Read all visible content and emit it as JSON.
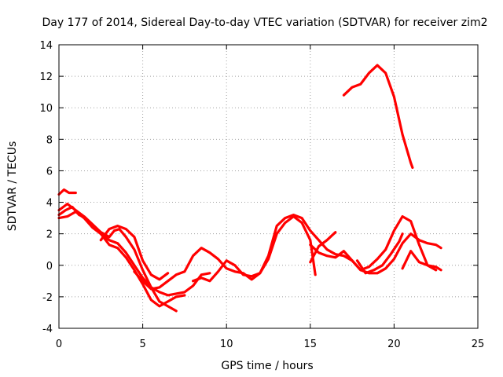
{
  "chart_data": {
    "type": "line",
    "title": "Day 177 of 2014, Sidereal Day-to-day VTEC variation (SDTVAR) for receiver zim2",
    "xlabel": "GPS time / hours",
    "ylabel": "SDTVAR / TECUs",
    "xlim": [
      0,
      25
    ],
    "ylim": [
      -4,
      14
    ],
    "xticks": [
      0,
      5,
      10,
      15,
      20,
      25
    ],
    "yticks": [
      -4,
      -2,
      0,
      2,
      4,
      6,
      8,
      10,
      12,
      14
    ],
    "grid": true,
    "legend": "none",
    "color": "#ff0000",
    "series": [
      {
        "name": "trace-1",
        "x": [
          0.0,
          0.3,
          0.6,
          1.0
        ],
        "y": [
          4.5,
          4.8,
          4.6,
          4.6
        ]
      },
      {
        "name": "trace-2",
        "x": [
          0.0,
          0.5,
          1.0,
          1.5,
          2.0,
          2.5,
          3.0,
          3.3,
          3.6,
          4.0,
          4.5,
          5.0,
          5.5,
          6.0,
          6.5,
          7.0
        ],
        "y": [
          3.5,
          3.9,
          3.5,
          3.1,
          2.6,
          2.1,
          1.8,
          2.2,
          2.3,
          1.8,
          1.0,
          -0.3,
          -1.4,
          -2.3,
          -2.6,
          -2.9
        ]
      },
      {
        "name": "trace-3",
        "x": [
          0.0,
          0.5,
          1.0,
          1.5,
          2.0,
          2.5,
          3.0,
          3.5,
          4.0,
          4.5,
          5.0,
          5.5,
          6.0,
          6.5,
          7.0,
          7.5
        ],
        "y": [
          3.0,
          3.1,
          3.4,
          3.0,
          2.4,
          2.0,
          1.3,
          1.1,
          0.5,
          -0.3,
          -1.2,
          -2.2,
          -2.6,
          -2.3,
          -2.0,
          -1.9
        ]
      },
      {
        "name": "trace-4",
        "x": [
          0.0,
          0.4,
          0.8,
          1.2,
          1.6,
          2.0,
          2.5,
          3.0,
          3.5,
          4.0,
          4.5,
          5.0,
          5.5,
          6.0,
          6.5,
          7.0,
          7.5,
          8.0,
          8.5,
          9.0
        ],
        "y": [
          3.2,
          3.5,
          3.7,
          3.2,
          3.0,
          2.5,
          2.0,
          1.6,
          1.4,
          0.8,
          0.0,
          -0.8,
          -1.4,
          -1.7,
          -1.9,
          -1.8,
          -1.7,
          -1.3,
          -0.6,
          -0.5
        ]
      },
      {
        "name": "trace-5",
        "x": [
          2.5,
          3.0,
          3.5,
          4.0,
          4.5,
          5.0,
          5.5,
          6.0,
          6.5
        ],
        "y": [
          1.6,
          2.3,
          2.5,
          2.3,
          1.8,
          0.3,
          -0.6,
          -0.9,
          -0.5
        ]
      },
      {
        "name": "trace-6",
        "x": [
          4.5,
          5.0,
          5.5,
          6.0,
          6.5,
          7.0,
          7.5,
          8.0,
          8.5,
          9.0,
          9.5,
          10.0,
          10.5,
          11.0,
          11.5,
          12.0,
          12.5,
          13.0,
          13.5,
          14.0,
          14.5,
          15.0,
          15.3
        ],
        "y": [
          -0.4,
          -1.0,
          -1.5,
          -1.4,
          -1.0,
          -0.6,
          -0.4,
          0.6,
          1.1,
          0.8,
          0.4,
          -0.2,
          -0.4,
          -0.5,
          -0.9,
          -0.5,
          0.4,
          2.0,
          2.7,
          3.1,
          2.7,
          1.6,
          -0.6
        ]
      },
      {
        "name": "trace-7",
        "x": [
          8.0,
          8.5,
          9.0,
          9.5,
          10.0,
          10.5,
          11.0,
          11.5,
          12.0,
          12.5,
          13.0,
          13.5,
          14.0,
          14.5,
          15.0,
          15.5,
          16.0,
          16.5,
          17.0,
          17.5,
          18.0,
          18.5,
          19.0,
          19.5,
          20.0,
          20.5,
          21.0,
          21.5,
          22.0,
          22.5,
          22.8
        ],
        "y": [
          -1.0,
          -0.8,
          -1.0,
          -0.4,
          0.3,
          0.0,
          -0.6,
          -0.7,
          -0.5,
          0.6,
          2.5,
          3.0,
          3.2,
          3.0,
          2.2,
          1.6,
          1.0,
          0.7,
          0.6,
          0.3,
          -0.3,
          -0.5,
          -0.5,
          -0.2,
          0.4,
          1.4,
          2.0,
          1.6,
          1.4,
          1.3,
          1.1
        ]
      },
      {
        "name": "trace-8",
        "x": [
          15.0,
          15.5,
          16.0,
          16.5,
          17.0,
          17.5,
          18.0,
          18.5,
          19.0,
          19.5,
          20.0,
          20.5,
          21.0,
          21.5,
          22.0,
          22.5,
          22.8
        ],
        "y": [
          1.3,
          0.8,
          0.6,
          0.5,
          0.9,
          0.3,
          -0.3,
          -0.1,
          0.4,
          1.0,
          2.2,
          3.1,
          2.8,
          1.3,
          0.0,
          -0.1,
          -0.3
        ]
      },
      {
        "name": "trace-9",
        "x": [
          15.0,
          15.5,
          16.0,
          16.5
        ],
        "y": [
          0.2,
          1.2,
          1.6,
          2.1
        ]
      },
      {
        "name": "trace-10",
        "x": [
          17.8,
          18.3,
          18.8,
          19.3,
          19.8,
          20.3,
          20.5
        ],
        "y": [
          0.3,
          -0.5,
          -0.3,
          0.0,
          0.7,
          1.5,
          2.0
        ]
      },
      {
        "name": "trace-11",
        "x": [
          20.5,
          21.0,
          21.5,
          22.0,
          22.5
        ],
        "y": [
          -0.2,
          0.9,
          0.2,
          0.0,
          -0.3
        ]
      },
      {
        "name": "trace-12",
        "x": [
          17.0,
          17.5,
          18.0,
          18.5,
          19.0,
          19.5,
          20.0,
          20.5,
          21.0,
          21.1
        ],
        "y": [
          10.8,
          11.3,
          11.5,
          12.2,
          12.7,
          12.2,
          10.7,
          8.3,
          6.5,
          6.2
        ]
      }
    ]
  }
}
